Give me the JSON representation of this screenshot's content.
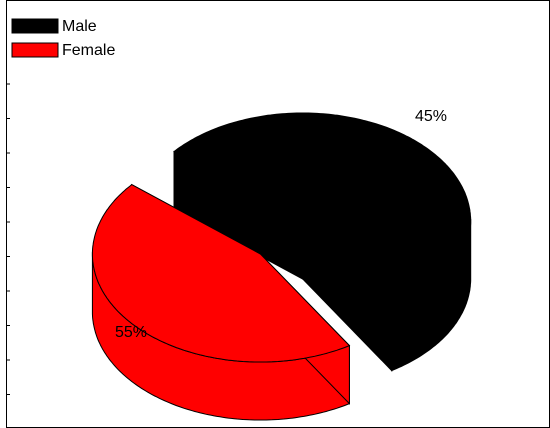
{
  "chart_data": {
    "type": "pie",
    "style": "3d-exploded",
    "categories": [
      "Male",
      "Female"
    ],
    "values": [
      55,
      45
    ],
    "labels": [
      "55%",
      "45%"
    ],
    "colors": [
      "#000000",
      "#ff0000"
    ],
    "legend": {
      "position": "top-left",
      "entries": [
        "Male",
        "Female"
      ]
    },
    "title": "",
    "grid": false
  }
}
